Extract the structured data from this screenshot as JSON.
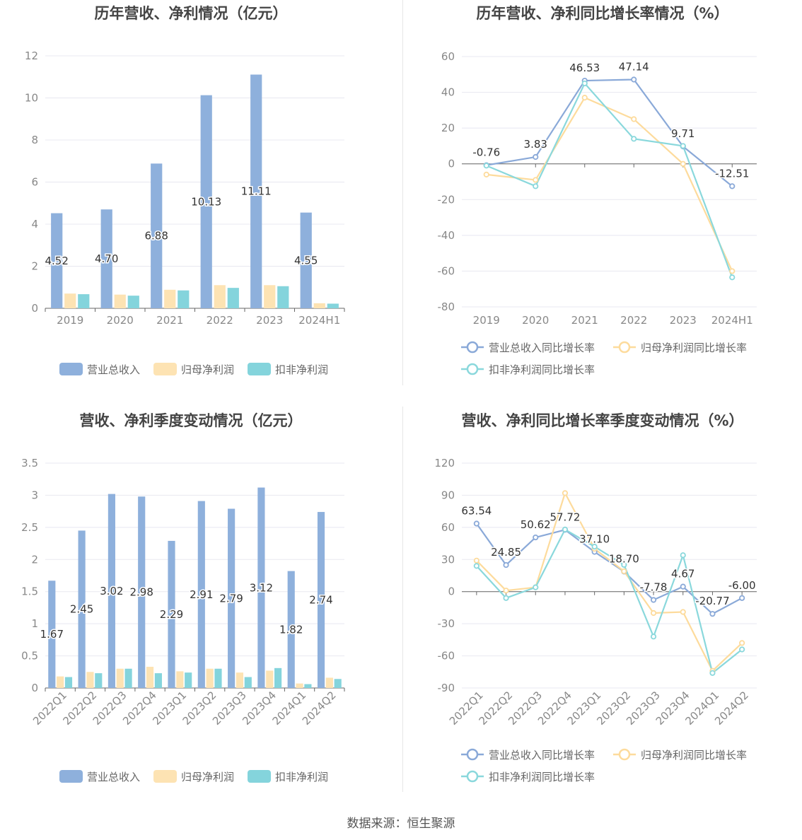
{
  "colors": {
    "revenue": "#8eb0dc",
    "net_profit": "#fde3b3",
    "deducted_profit": "#84d4dc",
    "revenue_line": "#8aa9d8",
    "net_line": "#fddb9c",
    "deducted_line": "#8ad8dc",
    "axis_text": "#888888",
    "grid": "#e8e8f0",
    "title": "#444444"
  },
  "chart_data": [
    {
      "type": "bar",
      "title": "历年营收、净利情况（亿元）",
      "categories": [
        "2019",
        "2020",
        "2021",
        "2022",
        "2023",
        "2024H1"
      ],
      "ylim": [
        0,
        12
      ],
      "yticks": [
        "0",
        "2",
        "4",
        "6",
        "8",
        "10",
        "12"
      ],
      "grid": true,
      "legend": "bottom",
      "series": [
        {
          "name": "营业总收入",
          "values": [
            4.52,
            4.7,
            6.88,
            10.13,
            11.11,
            4.55
          ],
          "labels": [
            "4.52",
            "4.70",
            "6.88",
            "10.13",
            "11.11",
            "4.55"
          ]
        },
        {
          "name": "归母净利润",
          "values": [
            0.7,
            0.65,
            0.88,
            1.1,
            1.1,
            0.24
          ]
        },
        {
          "name": "扣非净利润",
          "values": [
            0.67,
            0.6,
            0.85,
            0.97,
            1.05,
            0.22
          ]
        }
      ]
    },
    {
      "type": "line",
      "title": "历年营收、净利同比增长率情况（%）",
      "categories": [
        "2019",
        "2020",
        "2021",
        "2022",
        "2023",
        "2024H1"
      ],
      "ylim": [
        -80,
        60
      ],
      "yticks": [
        "-80",
        "-60",
        "-40",
        "-20",
        "0",
        "20",
        "40",
        "60"
      ],
      "grid": true,
      "legend": "bottom",
      "series": [
        {
          "name": "营业总收入同比增长率",
          "values": [
            -0.76,
            3.83,
            46.53,
            47.14,
            9.71,
            -12.51
          ],
          "labels": [
            "-0.76",
            "3.83",
            "46.53",
            "47.14",
            "9.71",
            "-12.51"
          ]
        },
        {
          "name": "归母净利润同比增长率",
          "values": [
            -6,
            -9,
            37,
            25,
            0,
            -60
          ]
        },
        {
          "name": "扣非净利润同比增长率",
          "values": [
            -1,
            -12.5,
            45,
            14,
            10,
            -63.5
          ]
        }
      ]
    },
    {
      "type": "bar",
      "title": "营收、净利季度变动情况（亿元）",
      "categories": [
        "2022Q1",
        "2022Q2",
        "2022Q3",
        "2022Q4",
        "2023Q1",
        "2023Q2",
        "2023Q3",
        "2023Q4",
        "2024Q1",
        "2024Q2"
      ],
      "ylim": [
        0,
        3.5
      ],
      "yticks": [
        "0",
        "0.5",
        "1",
        "1.5",
        "2",
        "2.5",
        "3",
        "3.5"
      ],
      "grid": true,
      "legend": "bottom",
      "series": [
        {
          "name": "营业总收入",
          "values": [
            1.67,
            2.45,
            3.02,
            2.98,
            2.29,
            2.91,
            2.79,
            3.12,
            1.82,
            2.74
          ],
          "labels": [
            "1.67",
            "2.45",
            "3.02",
            "2.98",
            "2.29",
            "2.91",
            "2.79",
            "3.12",
            "1.82",
            "2.74"
          ]
        },
        {
          "name": "归母净利润",
          "values": [
            0.18,
            0.25,
            0.3,
            0.33,
            0.26,
            0.3,
            0.24,
            0.27,
            0.07,
            0.16
          ]
        },
        {
          "name": "扣非净利润",
          "values": [
            0.17,
            0.23,
            0.3,
            0.23,
            0.24,
            0.3,
            0.17,
            0.31,
            0.06,
            0.14
          ]
        }
      ]
    },
    {
      "type": "line",
      "title": "营收、净利同比增长率季度变动情况（%）",
      "categories": [
        "2022Q1",
        "2022Q2",
        "2022Q3",
        "2022Q4",
        "2023Q1",
        "2023Q2",
        "2023Q3",
        "2023Q4",
        "2024Q1",
        "2024Q2"
      ],
      "ylim": [
        -90,
        120
      ],
      "yticks": [
        "-90",
        "-60",
        "-30",
        "0",
        "30",
        "60",
        "90",
        "120"
      ],
      "grid": true,
      "legend": "bottom",
      "series": [
        {
          "name": "营业总收入同比增长率",
          "values": [
            63.54,
            24.85,
            50.62,
            57.72,
            37.1,
            18.7,
            -7.78,
            4.67,
            -20.77,
            -6.0
          ],
          "labels": [
            "63.54",
            "24.85",
            "50.62",
            "57.72",
            "37.10",
            "18.70",
            "-7.78",
            "4.67",
            "-20.77",
            "-6.00"
          ]
        },
        {
          "name": "归母净利润同比增长率",
          "values": [
            29,
            1,
            4,
            92,
            40,
            19,
            -20,
            -19,
            -74,
            -48
          ]
        },
        {
          "name": "扣非净利润同比增长率",
          "values": [
            24,
            -6,
            4,
            58,
            42,
            25,
            -42,
            34,
            -76,
            -54
          ]
        }
      ]
    }
  ],
  "footer": {
    "source": "数据来源：恒生聚源"
  }
}
